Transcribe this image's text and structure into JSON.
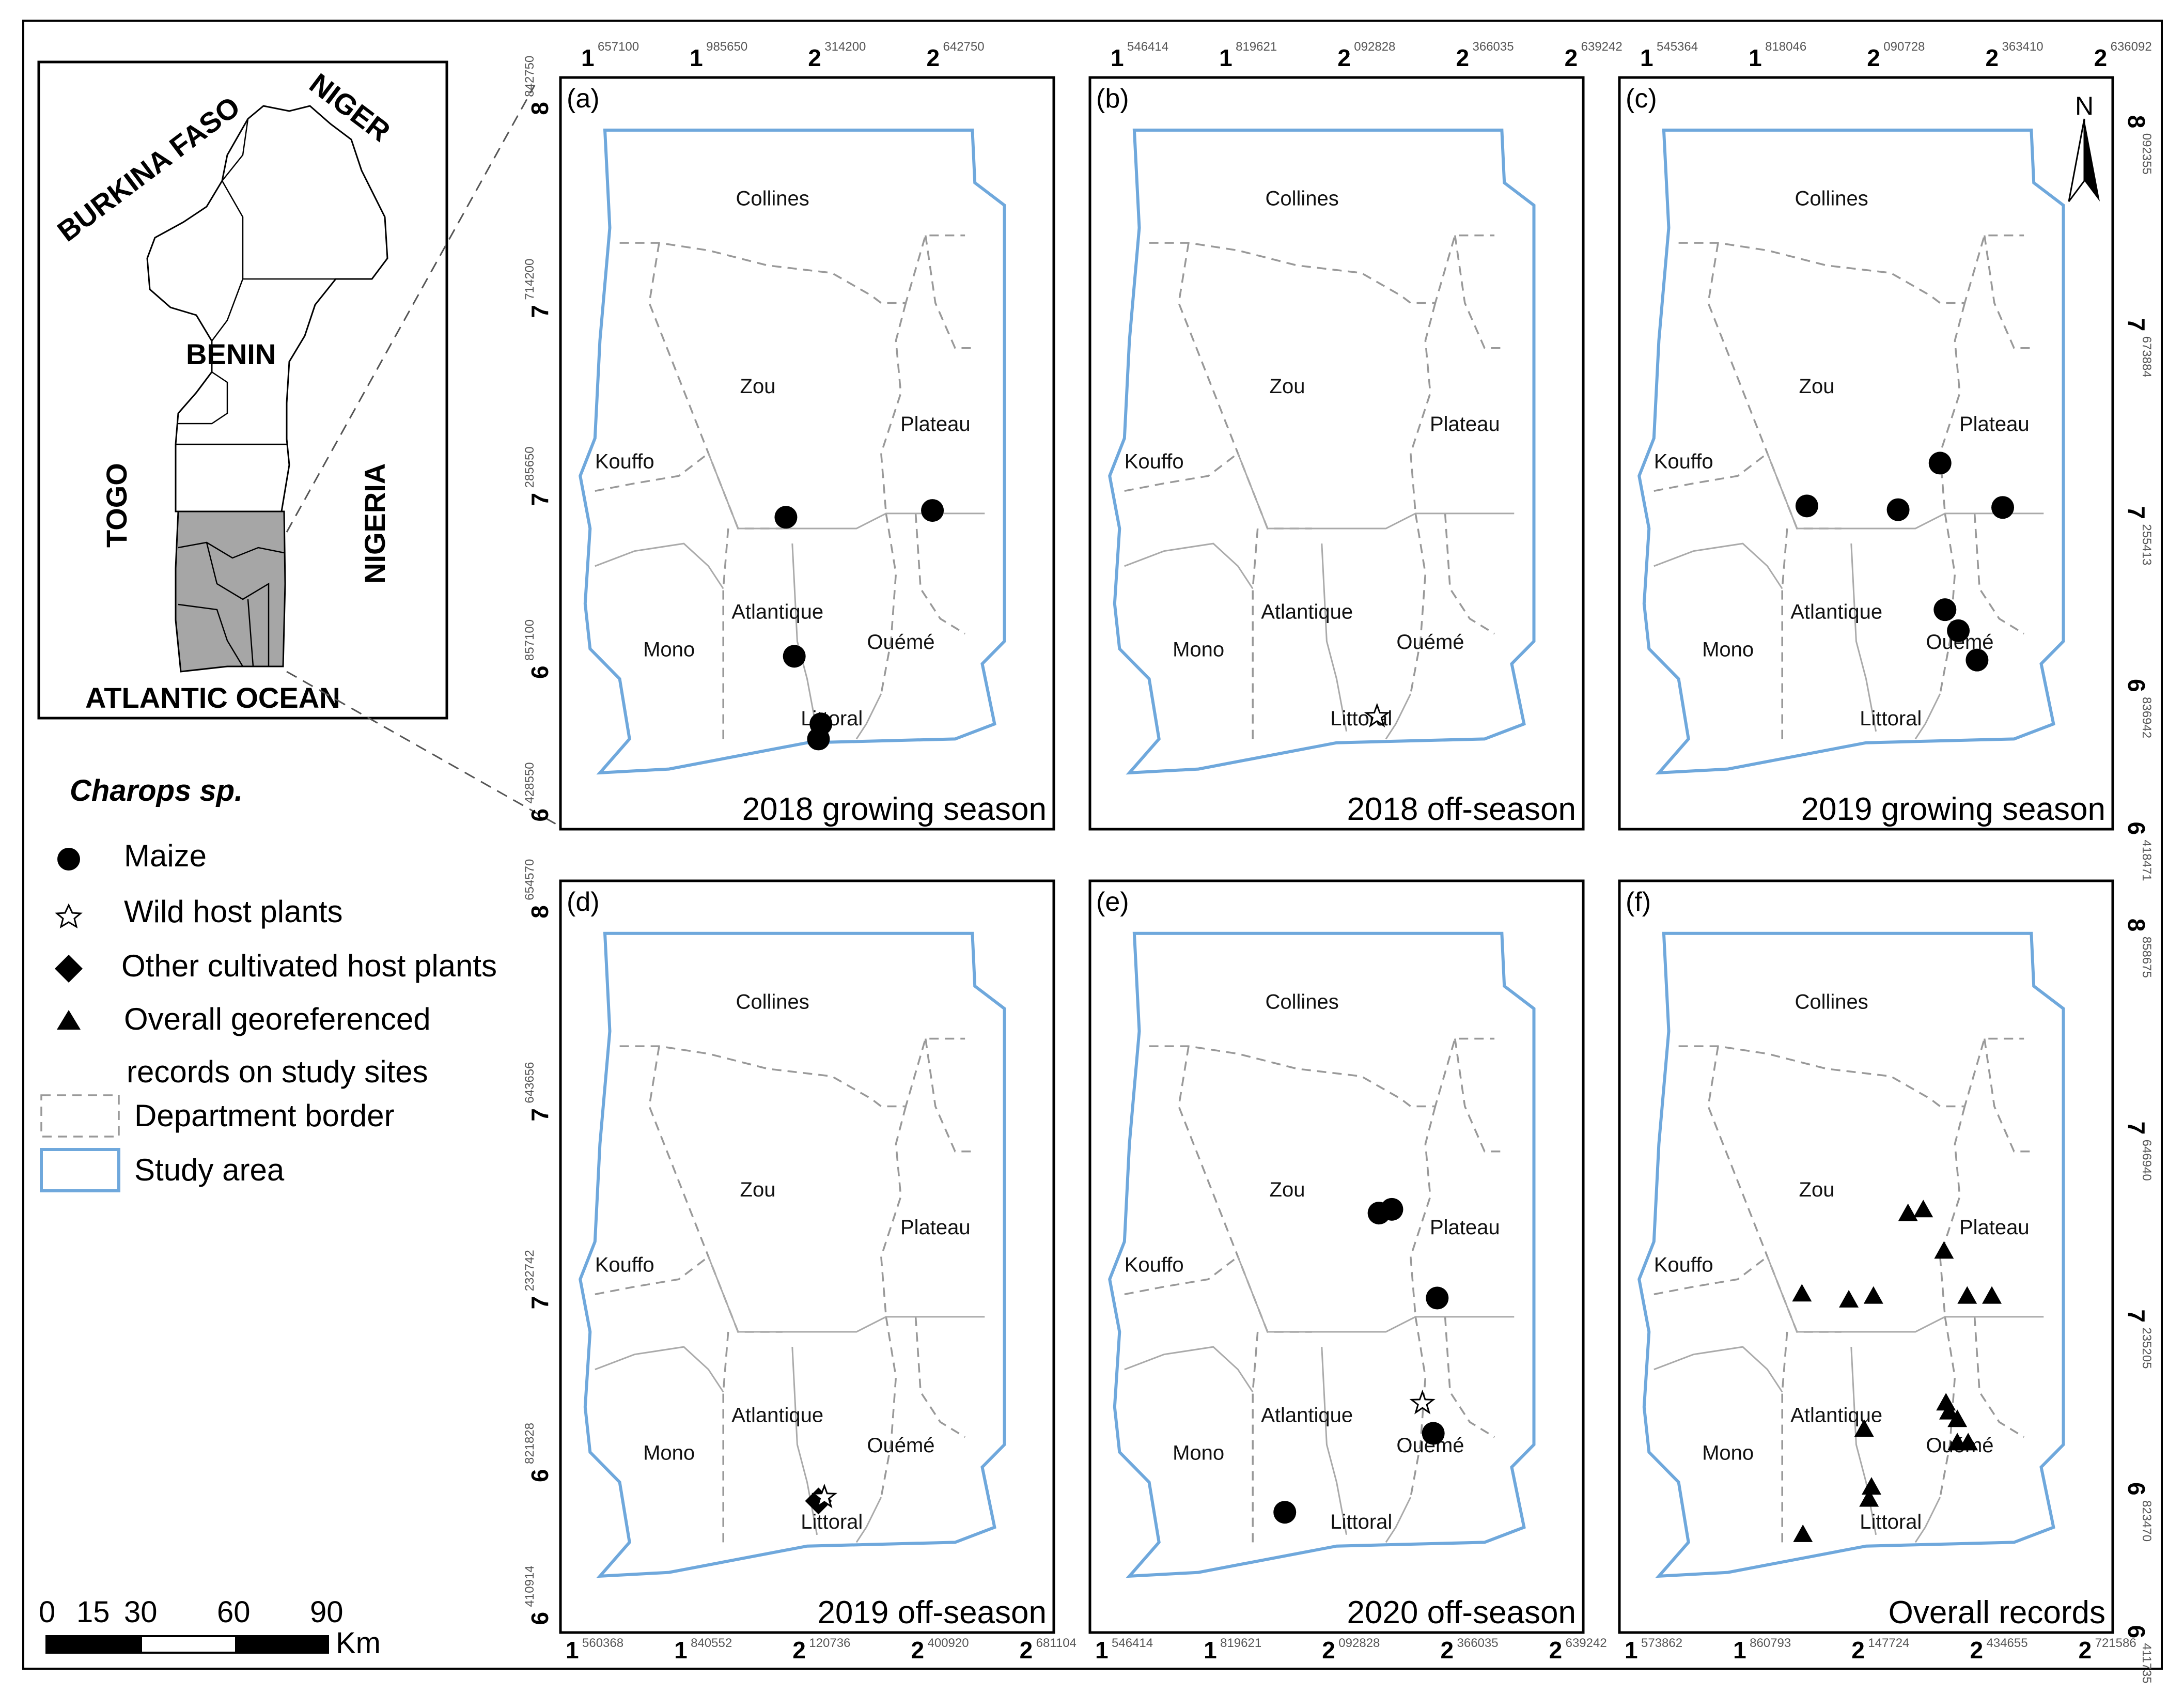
{
  "panels": [
    {
      "label": "(a)",
      "caption": "2018 growing season",
      "top_ticks": [
        [
          "1",
          "657100"
        ],
        [
          "1",
          "985650"
        ],
        [
          "2",
          "314200"
        ],
        [
          "2",
          "642750"
        ]
      ],
      "side_ticks": [
        [
          "8",
          "842750"
        ],
        [
          "7",
          "714200"
        ],
        [
          "7",
          "285650"
        ],
        [
          "6",
          "857100"
        ],
        [
          "6",
          "428550"
        ]
      ],
      "bottom_ticks": [],
      "markers": [
        {
          "kind": "circle",
          "x": 0.457,
          "y": 0.585
        },
        {
          "kind": "circle",
          "x": 0.754,
          "y": 0.576
        },
        {
          "kind": "circle",
          "x": 0.474,
          "y": 0.77
        },
        {
          "kind": "circle",
          "x": 0.528,
          "y": 0.86
        },
        {
          "kind": "circle",
          "x": 0.523,
          "y": 0.88
        }
      ]
    },
    {
      "label": "(b)",
      "caption": "2018 off-season",
      "top_ticks": [
        [
          "1",
          "546414"
        ],
        [
          "1",
          "819621"
        ],
        [
          "2",
          "092828"
        ],
        [
          "2",
          "366035"
        ],
        [
          "2",
          "639242"
        ]
      ],
      "side_ticks": [],
      "bottom_ticks": [],
      "markers": [
        {
          "kind": "star",
          "x": 0.582,
          "y": 0.85
        }
      ]
    },
    {
      "label": "(c)",
      "caption": "2019 growing season",
      "top_ticks": [
        [
          "1",
          "545364"
        ],
        [
          "1",
          "818046"
        ],
        [
          "2",
          "090728"
        ],
        [
          "2",
          "363410"
        ],
        [
          "2",
          "636092"
        ]
      ],
      "side_ticks": [
        [
          "8",
          "092355"
        ],
        [
          "7",
          "673884"
        ],
        [
          "7",
          "255413"
        ],
        [
          "6",
          "836942"
        ],
        [
          "6",
          "418471"
        ]
      ],
      "bottom_ticks": [],
      "north": "N",
      "markers": [
        {
          "kind": "circle",
          "x": 0.38,
          "y": 0.57
        },
        {
          "kind": "circle",
          "x": 0.565,
          "y": 0.575
        },
        {
          "kind": "circle",
          "x": 0.65,
          "y": 0.513
        },
        {
          "kind": "circle",
          "x": 0.777,
          "y": 0.572
        },
        {
          "kind": "circle",
          "x": 0.66,
          "y": 0.708
        },
        {
          "kind": "circle",
          "x": 0.687,
          "y": 0.736
        },
        {
          "kind": "circle",
          "x": 0.725,
          "y": 0.775
        }
      ]
    },
    {
      "label": "(d)",
      "caption": "2019 off-season",
      "top_ticks": [],
      "side_ticks": [
        [
          "8",
          "654570"
        ],
        [
          "7",
          "643656"
        ],
        [
          "7",
          "232742"
        ],
        [
          "6",
          "821828"
        ],
        [
          "6",
          "410914"
        ]
      ],
      "bottom_ticks": [
        [
          "1",
          "560368"
        ],
        [
          "1",
          "840552"
        ],
        [
          "2",
          "120736"
        ],
        [
          "2",
          "400920"
        ],
        [
          "2",
          "681104"
        ]
      ],
      "markers": [
        {
          "kind": "diamond",
          "x": 0.523,
          "y": 0.825
        },
        {
          "kind": "star",
          "x": 0.535,
          "y": 0.82
        }
      ]
    },
    {
      "label": "(e)",
      "caption": "2020 off-season",
      "top_ticks": [],
      "side_ticks": [],
      "bottom_ticks": [
        [
          "1",
          "546414"
        ],
        [
          "1",
          "819621"
        ],
        [
          "2",
          "092828"
        ],
        [
          "2",
          "366035"
        ],
        [
          "2",
          "639242"
        ]
      ],
      "markers": [
        {
          "kind": "circle",
          "x": 0.586,
          "y": 0.442
        },
        {
          "kind": "circle",
          "x": 0.612,
          "y": 0.437
        },
        {
          "kind": "circle",
          "x": 0.704,
          "y": 0.555
        },
        {
          "kind": "star",
          "x": 0.674,
          "y": 0.695
        },
        {
          "kind": "circle",
          "x": 0.696,
          "y": 0.735
        },
        {
          "kind": "circle",
          "x": 0.395,
          "y": 0.84
        }
      ]
    },
    {
      "label": "(f)",
      "caption": "Overall records",
      "top_ticks": [],
      "side_ticks": [
        [
          "8",
          "858675"
        ],
        [
          "7",
          "646940"
        ],
        [
          "7",
          "235205"
        ],
        [
          "6",
          "823470"
        ],
        [
          "6",
          "411735"
        ]
      ],
      "bottom_ticks": [
        [
          "1",
          "573862"
        ],
        [
          "1",
          "860793"
        ],
        [
          "2",
          "147724"
        ],
        [
          "2",
          "434655"
        ],
        [
          "2",
          "721586"
        ]
      ],
      "markers": [
        {
          "kind": "triangle",
          "x": 0.585,
          "y": 0.443
        },
        {
          "kind": "triangle",
          "x": 0.616,
          "y": 0.438
        },
        {
          "kind": "triangle",
          "x": 0.658,
          "y": 0.493
        },
        {
          "kind": "triangle",
          "x": 0.37,
          "y": 0.55
        },
        {
          "kind": "triangle",
          "x": 0.465,
          "y": 0.558
        },
        {
          "kind": "triangle",
          "x": 0.515,
          "y": 0.553
        },
        {
          "kind": "triangle",
          "x": 0.705,
          "y": 0.553
        },
        {
          "kind": "triangle",
          "x": 0.755,
          "y": 0.553
        },
        {
          "kind": "triangle",
          "x": 0.662,
          "y": 0.695
        },
        {
          "kind": "triangle",
          "x": 0.668,
          "y": 0.707
        },
        {
          "kind": "triangle",
          "x": 0.685,
          "y": 0.717
        },
        {
          "kind": "triangle",
          "x": 0.685,
          "y": 0.748
        },
        {
          "kind": "triangle",
          "x": 0.707,
          "y": 0.748
        },
        {
          "kind": "triangle",
          "x": 0.496,
          "y": 0.73
        },
        {
          "kind": "triangle",
          "x": 0.511,
          "y": 0.807
        },
        {
          "kind": "triangle",
          "x": 0.506,
          "y": 0.823
        },
        {
          "kind": "triangle",
          "x": 0.372,
          "y": 0.87
        }
      ]
    }
  ],
  "regions": [
    "Collines",
    "Zou",
    "Plateau",
    "Kouffo",
    "Atlantique",
    "Mono",
    "Ouémé",
    "Littoral"
  ],
  "inset": {
    "countries": [
      "BURKINA FASO",
      "NIGER",
      "BENIN",
      "TOGO",
      "NIGERIA"
    ],
    "ocean": "ATLANTIC OCEAN"
  },
  "legend": {
    "title": "Charops sp.",
    "items": [
      {
        "symbol": "circle",
        "label": "Maize"
      },
      {
        "symbol": "star",
        "label": "Wild host plants"
      },
      {
        "symbol": "diamond",
        "label": "Other cultivated host plants"
      },
      {
        "symbol": "triangle",
        "label": "Overall georeferenced"
      },
      {
        "symbol": "none",
        "label": "records on study sites"
      },
      {
        "symbol": "dashed-box",
        "label": "Department border"
      },
      {
        "symbol": "blue-box",
        "label": "Study area"
      }
    ]
  },
  "scale": {
    "ticks": [
      "0",
      "15",
      "30",
      "60",
      "90"
    ],
    "unit": "Km"
  },
  "colors": {
    "study_area": "#6fa8dc",
    "department_border": "#999999",
    "inset_highlight": "#a6a6a6",
    "marker": "#000000"
  }
}
